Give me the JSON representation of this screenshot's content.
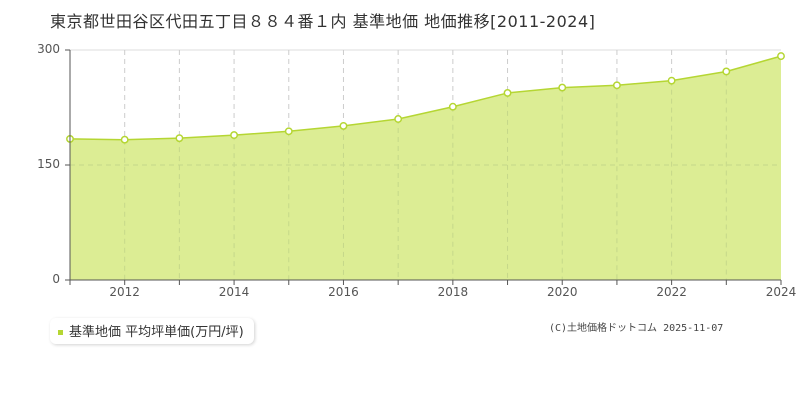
{
  "title": "東京都世田谷区代田五丁目８８４番１内 基準地価 地価推移[2011-2024]",
  "legend": {
    "label": "基準地価 平均坪単価(万円/坪)",
    "color": "#b5d633"
  },
  "credit": "(C)土地価格ドットコム 2025-11-07",
  "y_ticks": [
    "300",
    "150",
    "0"
  ],
  "x_ticks": [
    "2012",
    "2014",
    "2016",
    "2018",
    "2020",
    "2022",
    "2024"
  ],
  "colors": {
    "fill": "#dced94",
    "line": "#b5d633",
    "grid": "#cccccc",
    "axis": "#555555"
  },
  "chart_data": {
    "type": "area",
    "title": "東京都世田谷区代田五丁目８８４番１内 基準地価 地価推移[2011-2024]",
    "xlabel": "",
    "ylabel": "",
    "x": [
      2011,
      2012,
      2013,
      2014,
      2015,
      2016,
      2017,
      2018,
      2019,
      2020,
      2021,
      2022,
      2023,
      2024
    ],
    "series": [
      {
        "name": "基準地価 平均坪単価(万円/坪)",
        "values": [
          184,
          183,
          185,
          189,
          194,
          201,
          210,
          226,
          244,
          251,
          254,
          260,
          272,
          292
        ]
      }
    ],
    "ylim": [
      0,
      300
    ],
    "xlim": [
      2011,
      2024
    ],
    "y_ticks": [
      0,
      150,
      300
    ],
    "x_ticks": [
      2012,
      2014,
      2016,
      2018,
      2020,
      2022,
      2024
    ],
    "grid": {
      "x": "dashed",
      "y_mid": "dashed"
    },
    "legend_position": "bottom-left"
  }
}
